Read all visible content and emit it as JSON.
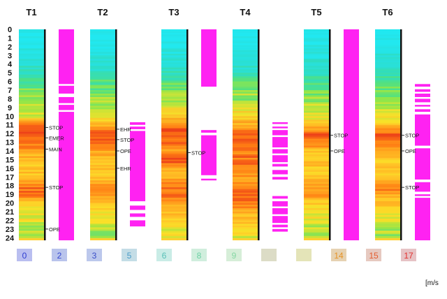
{
  "chart_data": {
    "type": "heatmap",
    "y_ticks": [
      "0",
      "1",
      "2",
      "3",
      "4",
      "5",
      "6",
      "7",
      "8",
      "9",
      "10",
      "11",
      "12",
      "13",
      "14",
      "15",
      "16",
      "17",
      "18",
      "19",
      "20",
      "21",
      "22",
      "23",
      "24"
    ],
    "unit_label": "[m/s",
    "tracks": [
      {
        "name": "T1",
        "speed_profile": [
          0,
          0,
          0.5,
          1,
          1.5,
          2,
          3,
          3.5,
          4,
          4.5,
          5,
          8,
          9,
          8,
          7,
          6,
          6,
          6,
          8,
          8,
          6,
          5,
          5,
          4,
          4
        ],
        "status_intervals": [
          [
            0,
            6.3
          ],
          [
            6.5,
            7.4
          ],
          [
            7.8,
            8.5
          ],
          [
            8.7,
            9.3
          ],
          [
            9.5,
            24.3
          ]
        ],
        "annotations": [
          {
            "label": "STOP",
            "y": 11.3
          },
          {
            "label": "EMER",
            "y": 12.5
          },
          {
            "label": "MAIN",
            "y": 13.8
          },
          {
            "label": "STOP",
            "y": 18.2
          },
          {
            "label": "OPE",
            "y": 23
          }
        ]
      },
      {
        "name": "T2",
        "speed_profile": [
          0,
          0,
          0.5,
          1,
          1.5,
          2,
          3,
          3.5,
          4,
          4.5,
          5,
          7,
          9,
          8,
          7,
          6,
          6,
          6,
          8,
          7,
          6,
          5,
          5,
          4,
          4
        ],
        "status_intervals": [
          [
            10.7,
            11
          ],
          [
            11.2,
            11.5
          ],
          [
            11.7,
            19.8
          ],
          [
            20.3,
            20.8
          ],
          [
            21.2,
            21.6
          ],
          [
            22,
            22.7
          ]
        ],
        "annotations": [
          {
            "label": "EHR",
            "y": 11.5
          },
          {
            "label": "STOP",
            "y": 12.7
          },
          {
            "label": "OPE",
            "y": 14
          },
          {
            "label": "EHR",
            "y": 16
          }
        ]
      },
      {
        "name": "T3",
        "speed_profile": [
          0,
          0,
          0.5,
          1,
          1.5,
          2,
          3,
          4,
          4,
          5,
          6,
          8,
          9,
          8,
          7,
          9,
          7,
          7,
          8,
          8,
          7,
          6,
          6,
          5,
          5
        ],
        "status_intervals": [
          [
            0,
            6.6
          ],
          [
            11.6,
            11.9
          ],
          [
            12.2,
            16.8
          ],
          [
            17.2,
            17.4
          ]
        ],
        "annotations": [
          {
            "label": "STOP",
            "y": 14.2
          }
        ]
      },
      {
        "name": "T4",
        "speed_profile": [
          0,
          0,
          0.5,
          1,
          1.5,
          2,
          3,
          4,
          4,
          5,
          6,
          7,
          8,
          9,
          8,
          8,
          8,
          7,
          8,
          8,
          8,
          7,
          6,
          5,
          5
        ],
        "status_intervals": [
          [
            10.7,
            10.9
          ],
          [
            11.2,
            11.4
          ],
          [
            11.6,
            12.2
          ],
          [
            12.4,
            13.6
          ],
          [
            13.8,
            14.3
          ],
          [
            14.5,
            15.3
          ],
          [
            15.5,
            15.8
          ],
          [
            16.2,
            16.7
          ],
          [
            17,
            17.3
          ],
          [
            19.2,
            19.5
          ],
          [
            19.8,
            20.4
          ],
          [
            20.6,
            21.3
          ],
          [
            21.5,
            22.3
          ],
          [
            22.5,
            22.8
          ],
          [
            23,
            23.3
          ]
        ],
        "annotations": []
      },
      {
        "name": "T5",
        "speed_profile": [
          0,
          0,
          0.5,
          1,
          1.5,
          2,
          3,
          3.5,
          4,
          4.5,
          5,
          6,
          9,
          8,
          6,
          6,
          6,
          6,
          7,
          7,
          6,
          5,
          5,
          4,
          4
        ],
        "status_intervals": [
          [
            0,
            24.3
          ]
        ],
        "annotations": [
          {
            "label": "STOP",
            "y": 12.2
          },
          {
            "label": "OPE",
            "y": 14
          }
        ]
      },
      {
        "name": "T6",
        "speed_profile": [
          0,
          0,
          0.5,
          1,
          1.5,
          2,
          3,
          3.5,
          4,
          4.5,
          5,
          6,
          9,
          8,
          7,
          6,
          6,
          6,
          8,
          7,
          6,
          5,
          5,
          4,
          4
        ],
        "status_intervals": [
          [
            6.3,
            6.6
          ],
          [
            6.9,
            7.2
          ],
          [
            7.4,
            7.8
          ],
          [
            8,
            8.4
          ],
          [
            8.7,
            8.9
          ],
          [
            9.2,
            9.5
          ],
          [
            9.8,
            13.4
          ],
          [
            13.7,
            17.3
          ],
          [
            17.6,
            18.7
          ],
          [
            19,
            19.2
          ],
          [
            19.4,
            24.3
          ]
        ],
        "annotations": [
          {
            "label": "STOP",
            "y": 12.2
          },
          {
            "label": "OPE",
            "y": 14
          },
          {
            "label": "STOP",
            "y": 18.2
          }
        ]
      }
    ],
    "legend": [
      {
        "label": "0",
        "bg": "#b9bef0",
        "fg": "#2b3bd0"
      },
      {
        "label": "2",
        "bg": "#b9c4ec",
        "fg": "#3346d0"
      },
      {
        "label": "3",
        "bg": "#bcc8ec",
        "fg": "#3a4ec8"
      },
      {
        "label": "5",
        "bg": "#c4dde6",
        "fg": "#4a9cc8"
      },
      {
        "label": "6",
        "bg": "#c9ece6",
        "fg": "#57bfb6"
      },
      {
        "label": "8",
        "bg": "#d0eedd",
        "fg": "#6cd1a4"
      },
      {
        "label": "9",
        "bg": "#d6eed8",
        "fg": "#85d6a3"
      },
      {
        "label": "",
        "bg": "#dcdcc6",
        "fg": "#8a8a60"
      },
      {
        "label": "",
        "bg": "#e4e4b8",
        "fg": "#b3b36a"
      },
      {
        "label": "14",
        "bg": "#e6d2b2",
        "fg": "#e59225"
      },
      {
        "label": "15",
        "bg": "#e6c9c0",
        "fg": "#e35c2e"
      },
      {
        "label": "17",
        "bg": "#e6c3c5",
        "fg": "#e2302e"
      }
    ],
    "colors": {
      "status_bar": "#ff22f2",
      "track_line": "#111111",
      "text": "#111111"
    },
    "xlabel": "",
    "ylabel": "",
    "title": ""
  }
}
